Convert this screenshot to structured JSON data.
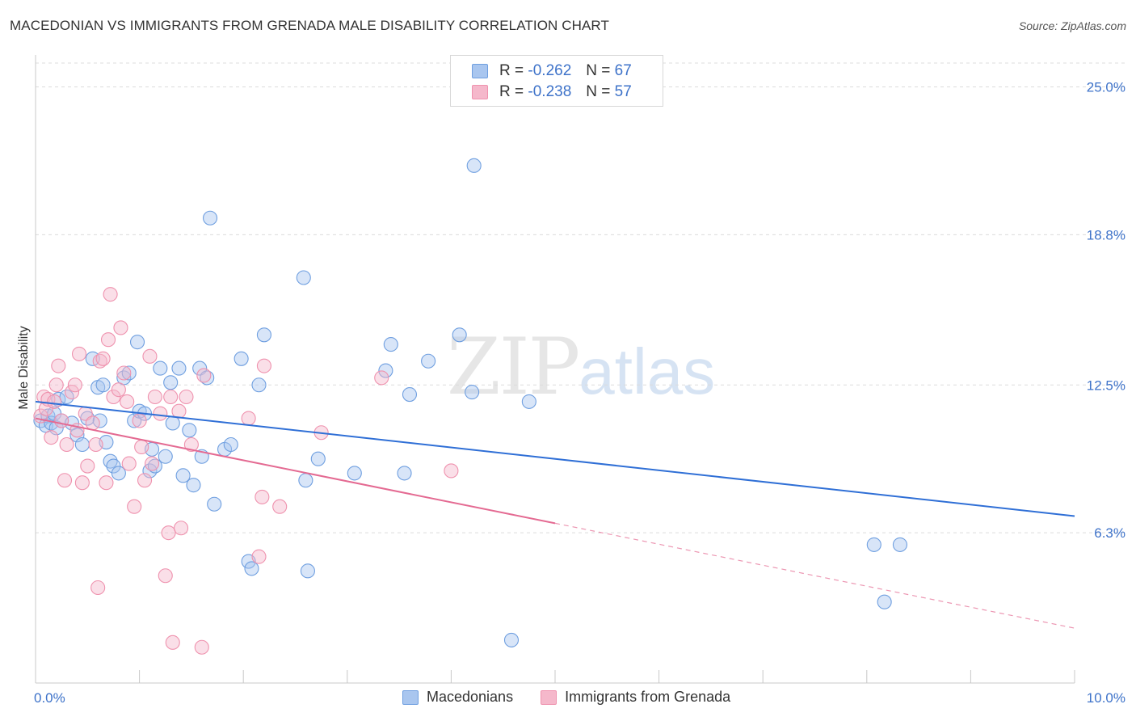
{
  "title": "MACEDONIAN VS IMMIGRANTS FROM GRENADA MALE DISABILITY CORRELATION CHART",
  "source": "Source: ZipAtlas.com",
  "watermark": {
    "zip": "ZIP",
    "atlas": "atlas"
  },
  "legend": {
    "rows": [
      {
        "r_label": "R =",
        "r_value": "-0.262",
        "n_label": "N =",
        "n_value": "67",
        "color": "#a9c6ef"
      },
      {
        "r_label": "R =",
        "r_value": "-0.238",
        "n_label": "N =",
        "n_value": "57",
        "color": "#f5b8cb"
      }
    ]
  },
  "bottom_legend": [
    {
      "label": "Macedonians",
      "color": "#a9c6ef"
    },
    {
      "label": "Immigrants from Grenada",
      "color": "#f5b8cb"
    }
  ],
  "chart_data": {
    "type": "scatter",
    "title": "MACEDONIAN VS IMMIGRANTS FROM GRENADA MALE DISABILITY CORRELATION CHART",
    "xlabel": "",
    "ylabel": "Male Disability",
    "xlim": [
      0,
      10
    ],
    "ylim": [
      0,
      26
    ],
    "x_tick_labels": [
      "0.0%",
      "10.0%"
    ],
    "y_ticks": [
      6.3,
      12.5,
      18.8,
      25.0
    ],
    "y_tick_labels": [
      "6.3%",
      "12.5%",
      "18.8%",
      "25.0%"
    ],
    "grid": true,
    "series": [
      {
        "name": "Macedonians",
        "color": "#6f9fe0",
        "fill": "#a9c6ef",
        "trend": {
          "x0": 0.0,
          "y0": 11.8,
          "x1": 10.0,
          "y1": 7.0,
          "dashed_from": null
        },
        "points": [
          [
            0.05,
            11.0
          ],
          [
            0.1,
            10.8
          ],
          [
            0.12,
            11.2
          ],
          [
            0.15,
            10.9
          ],
          [
            0.18,
            11.3
          ],
          [
            0.2,
            10.7
          ],
          [
            0.22,
            11.9
          ],
          [
            0.25,
            11.0
          ],
          [
            0.3,
            12.0
          ],
          [
            0.35,
            10.9
          ],
          [
            0.4,
            10.4
          ],
          [
            0.45,
            10.0
          ],
          [
            0.5,
            11.1
          ],
          [
            0.55,
            13.6
          ],
          [
            0.6,
            12.4
          ],
          [
            0.62,
            11.0
          ],
          [
            0.65,
            12.5
          ],
          [
            0.68,
            10.1
          ],
          [
            0.72,
            9.3
          ],
          [
            0.75,
            9.1
          ],
          [
            0.8,
            8.8
          ],
          [
            0.85,
            12.8
          ],
          [
            0.9,
            13.0
          ],
          [
            0.95,
            11.0
          ],
          [
            0.98,
            14.3
          ],
          [
            1.0,
            11.4
          ],
          [
            1.05,
            11.3
          ],
          [
            1.1,
            8.9
          ],
          [
            1.12,
            9.8
          ],
          [
            1.15,
            9.1
          ],
          [
            1.2,
            13.2
          ],
          [
            1.25,
            9.5
          ],
          [
            1.3,
            12.6
          ],
          [
            1.32,
            10.9
          ],
          [
            1.38,
            13.2
          ],
          [
            1.42,
            8.7
          ],
          [
            1.48,
            10.6
          ],
          [
            1.52,
            8.3
          ],
          [
            1.58,
            13.2
          ],
          [
            1.6,
            9.5
          ],
          [
            1.65,
            12.8
          ],
          [
            1.68,
            19.5
          ],
          [
            1.72,
            7.5
          ],
          [
            1.82,
            9.8
          ],
          [
            1.88,
            10.0
          ],
          [
            1.98,
            13.6
          ],
          [
            2.05,
            5.1
          ],
          [
            2.08,
            4.8
          ],
          [
            2.15,
            12.5
          ],
          [
            2.2,
            14.6
          ],
          [
            2.58,
            17.0
          ],
          [
            2.6,
            8.5
          ],
          [
            2.62,
            4.7
          ],
          [
            2.72,
            9.4
          ],
          [
            3.07,
            8.8
          ],
          [
            3.37,
            13.1
          ],
          [
            3.42,
            14.2
          ],
          [
            3.55,
            8.8
          ],
          [
            3.6,
            12.1
          ],
          [
            3.78,
            13.5
          ],
          [
            4.08,
            14.6
          ],
          [
            4.2,
            12.2
          ],
          [
            4.22,
            21.7
          ],
          [
            4.58,
            1.8
          ],
          [
            4.75,
            11.8
          ],
          [
            8.07,
            5.8
          ],
          [
            8.17,
            3.4
          ],
          [
            8.32,
            5.8
          ]
        ]
      },
      {
        "name": "Immigrants from Grenada",
        "color": "#ef92ae",
        "fill": "#f5b8cb",
        "trend": {
          "x0": 0.0,
          "y0": 11.1,
          "x1": 10.0,
          "y1": 2.3,
          "dashed_from": 5.0
        },
        "points": [
          [
            0.05,
            11.2
          ],
          [
            0.08,
            12.0
          ],
          [
            0.1,
            11.5
          ],
          [
            0.12,
            11.9
          ],
          [
            0.15,
            10.3
          ],
          [
            0.18,
            11.8
          ],
          [
            0.2,
            12.5
          ],
          [
            0.22,
            13.3
          ],
          [
            0.25,
            11.0
          ],
          [
            0.28,
            8.5
          ],
          [
            0.3,
            10.0
          ],
          [
            0.35,
            12.2
          ],
          [
            0.38,
            12.5
          ],
          [
            0.4,
            10.6
          ],
          [
            0.42,
            13.8
          ],
          [
            0.45,
            8.4
          ],
          [
            0.48,
            11.3
          ],
          [
            0.5,
            9.1
          ],
          [
            0.55,
            10.9
          ],
          [
            0.58,
            10.0
          ],
          [
            0.6,
            4.0
          ],
          [
            0.62,
            13.5
          ],
          [
            0.65,
            13.6
          ],
          [
            0.68,
            8.4
          ],
          [
            0.7,
            14.4
          ],
          [
            0.72,
            16.3
          ],
          [
            0.75,
            12.0
          ],
          [
            0.8,
            12.3
          ],
          [
            0.82,
            14.9
          ],
          [
            0.85,
            13.0
          ],
          [
            0.88,
            11.8
          ],
          [
            0.9,
            9.2
          ],
          [
            0.95,
            7.4
          ],
          [
            1.0,
            11.0
          ],
          [
            1.02,
            9.9
          ],
          [
            1.05,
            8.5
          ],
          [
            1.1,
            13.7
          ],
          [
            1.12,
            9.2
          ],
          [
            1.15,
            12.0
          ],
          [
            1.2,
            11.3
          ],
          [
            1.25,
            4.5
          ],
          [
            1.28,
            6.3
          ],
          [
            1.3,
            12.0
          ],
          [
            1.32,
            1.7
          ],
          [
            1.38,
            11.4
          ],
          [
            1.4,
            6.5
          ],
          [
            1.45,
            12.0
          ],
          [
            1.5,
            10.0
          ],
          [
            1.6,
            1.5
          ],
          [
            1.62,
            12.9
          ],
          [
            2.05,
            11.1
          ],
          [
            2.15,
            5.3
          ],
          [
            2.18,
            7.8
          ],
          [
            2.2,
            13.3
          ],
          [
            2.35,
            7.4
          ],
          [
            2.75,
            10.5
          ],
          [
            3.33,
            12.8
          ],
          [
            4.0,
            8.9
          ]
        ]
      }
    ]
  }
}
